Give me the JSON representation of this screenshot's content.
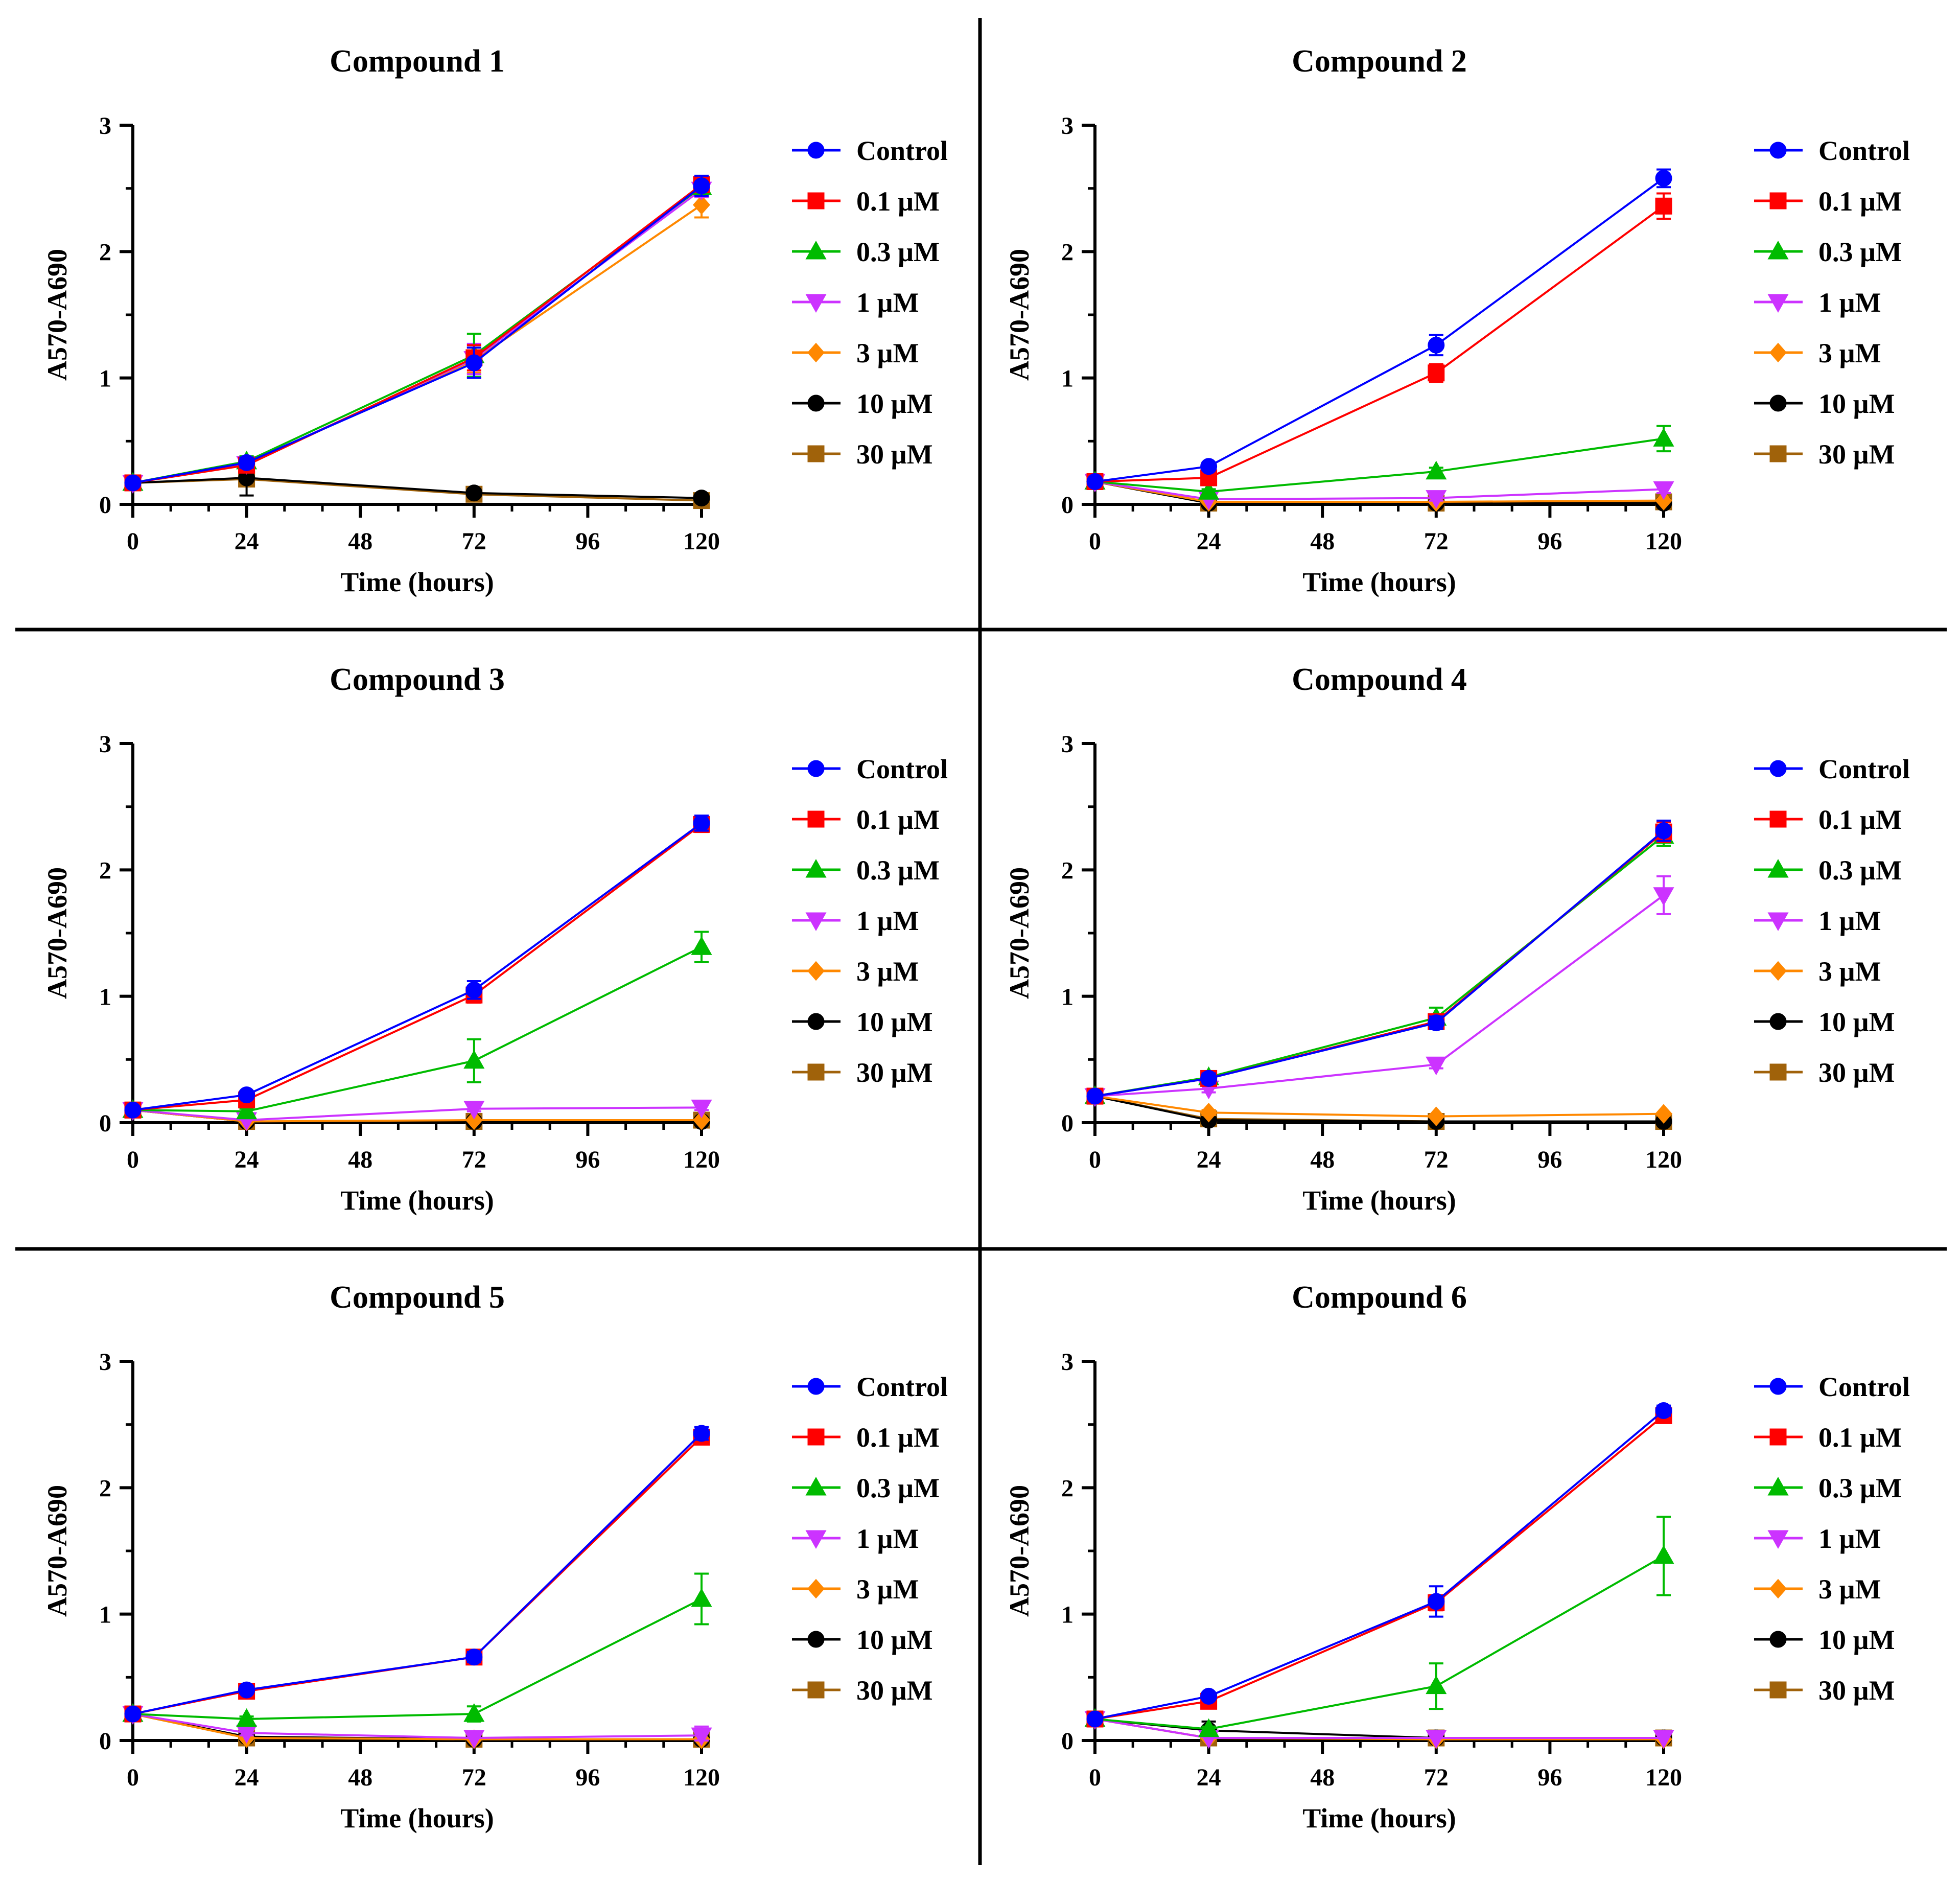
{
  "chart_data": [
    {
      "type": "line",
      "title": "Compound 1",
      "xlabel": "Time (hours)",
      "ylabel": "A570-A690",
      "x": [
        0,
        24,
        72,
        120
      ],
      "xticks": [
        0,
        24,
        48,
        72,
        96,
        120
      ],
      "yticks": [
        0,
        1,
        2,
        3
      ],
      "xlim": [
        0,
        120
      ],
      "ylim": [
        0,
        3
      ],
      "legend_position": "right",
      "series": [
        {
          "name": "Control",
          "color": "#0000ff",
          "marker": "circle",
          "values": [
            0.17,
            0.33,
            1.12,
            2.52
          ],
          "errors": [
            0.02,
            0.04,
            0.12,
            0.08
          ]
        },
        {
          "name": "0.1 µM",
          "color": "#ff0000",
          "marker": "square",
          "values": [
            0.17,
            0.31,
            1.16,
            2.53
          ],
          "errors": [
            0.02,
            0.04,
            0.1,
            0.06
          ]
        },
        {
          "name": "0.3 µM",
          "color": "#00bb00",
          "marker": "triangle-up",
          "values": [
            0.17,
            0.34,
            1.18,
            2.51
          ],
          "errors": [
            0.02,
            0.04,
            0.17,
            0.06
          ]
        },
        {
          "name": "1 µM",
          "color": "#cc33ff",
          "marker": "triangle-down",
          "values": [
            0.17,
            0.32,
            1.15,
            2.49
          ],
          "errors": [
            0.02,
            0.04,
            0.12,
            0.06
          ]
        },
        {
          "name": "3 µM",
          "color": "#ff8800",
          "marker": "diamond",
          "values": [
            0.17,
            0.32,
            1.14,
            2.37
          ],
          "errors": [
            0.02,
            0.04,
            0.1,
            0.1
          ]
        },
        {
          "name": "10 µM",
          "color": "#000000",
          "marker": "circle",
          "values": [
            0.17,
            0.21,
            0.09,
            0.05
          ],
          "errors": [
            0.02,
            0.14,
            0.03,
            0.01
          ]
        },
        {
          "name": "30 µM",
          "color": "#a0620a",
          "marker": "square",
          "values": [
            0.17,
            0.2,
            0.08,
            0.03
          ],
          "errors": [
            0.02,
            0.04,
            0.03,
            0.01
          ]
        }
      ]
    },
    {
      "type": "line",
      "title": "Compound 2",
      "xlabel": "Time (hours)",
      "ylabel": "A570-A690",
      "x": [
        0,
        24,
        72,
        120
      ],
      "xticks": [
        0,
        24,
        48,
        72,
        96,
        120
      ],
      "yticks": [
        0,
        1,
        2,
        3
      ],
      "xlim": [
        0,
        120
      ],
      "ylim": [
        0,
        3
      ],
      "legend_position": "right",
      "series": [
        {
          "name": "Control",
          "color": "#0000ff",
          "marker": "circle",
          "values": [
            0.18,
            0.3,
            1.26,
            2.58
          ],
          "errors": [
            0.02,
            0.03,
            0.08,
            0.07
          ]
        },
        {
          "name": "0.1 µM",
          "color": "#ff0000",
          "marker": "square",
          "values": [
            0.18,
            0.21,
            1.04,
            2.36
          ],
          "errors": [
            0.02,
            0.03,
            0.07,
            0.1
          ]
        },
        {
          "name": "0.3 µM",
          "color": "#00bb00",
          "marker": "triangle-up",
          "values": [
            0.18,
            0.1,
            0.26,
            0.52
          ],
          "errors": [
            0.02,
            0.02,
            0.03,
            0.1
          ]
        },
        {
          "name": "1 µM",
          "color": "#cc33ff",
          "marker": "triangle-down",
          "values": [
            0.18,
            0.04,
            0.05,
            0.12
          ],
          "errors": [
            0.02,
            0.01,
            0.02,
            0.03
          ]
        },
        {
          "name": "3 µM",
          "color": "#ff8800",
          "marker": "diamond",
          "values": [
            0.18,
            0.02,
            0.02,
            0.03
          ],
          "errors": [
            0.02,
            0.01,
            0.01,
            0.01
          ]
        },
        {
          "name": "10 µM",
          "color": "#000000",
          "marker": "circle",
          "values": [
            0.18,
            0.01,
            0.01,
            0.01
          ],
          "errors": [
            0.02,
            0.01,
            0.01,
            0.01
          ]
        },
        {
          "name": "30 µM",
          "color": "#a0620a",
          "marker": "square",
          "values": [
            0.18,
            0.01,
            0.01,
            0.02
          ],
          "errors": [
            0.02,
            0.01,
            0.01,
            0.01
          ]
        }
      ]
    },
    {
      "type": "line",
      "title": "Compound 3",
      "xlabel": "Time (hours)",
      "ylabel": "A570-A690",
      "x": [
        0,
        24,
        72,
        120
      ],
      "xticks": [
        0,
        24,
        48,
        72,
        96,
        120
      ],
      "yticks": [
        0,
        1,
        2,
        3
      ],
      "xlim": [
        0,
        120
      ],
      "ylim": [
        0,
        3
      ],
      "legend_position": "right",
      "series": [
        {
          "name": "Control",
          "color": "#0000ff",
          "marker": "circle",
          "values": [
            0.1,
            0.22,
            1.05,
            2.37
          ],
          "errors": [
            0.02,
            0.03,
            0.07,
            0.06
          ]
        },
        {
          "name": "0.1 µM",
          "color": "#ff0000",
          "marker": "square",
          "values": [
            0.1,
            0.18,
            1.01,
            2.36
          ],
          "errors": [
            0.02,
            0.03,
            0.06,
            0.06
          ]
        },
        {
          "name": "0.3 µM",
          "color": "#00bb00",
          "marker": "triangle-up",
          "values": [
            0.1,
            0.09,
            0.49,
            1.39
          ],
          "errors": [
            0.02,
            0.02,
            0.17,
            0.12
          ]
        },
        {
          "name": "1 µM",
          "color": "#cc33ff",
          "marker": "triangle-down",
          "values": [
            0.1,
            0.02,
            0.11,
            0.12
          ],
          "errors": [
            0.02,
            0.01,
            0.02,
            0.02
          ]
        },
        {
          "name": "3 µM",
          "color": "#ff8800",
          "marker": "diamond",
          "values": [
            0.1,
            0.01,
            0.02,
            0.02
          ],
          "errors": [
            0.02,
            0.01,
            0.01,
            0.01
          ]
        },
        {
          "name": "10 µM",
          "color": "#000000",
          "marker": "circle",
          "values": [
            0.1,
            0.01,
            0.01,
            0.01
          ],
          "errors": [
            0.02,
            0.01,
            0.01,
            0.01
          ]
        },
        {
          "name": "30 µM",
          "color": "#a0620a",
          "marker": "square",
          "values": [
            0.1,
            0.01,
            0.01,
            0.02
          ],
          "errors": [
            0.02,
            0.01,
            0.01,
            0.01
          ]
        }
      ]
    },
    {
      "type": "line",
      "title": "Compound 4",
      "xlabel": "Time (hours)",
      "ylabel": "A570-A690",
      "x": [
        0,
        24,
        72,
        120
      ],
      "xticks": [
        0,
        24,
        48,
        72,
        96,
        120
      ],
      "yticks": [
        0,
        1,
        2,
        3
      ],
      "xlim": [
        0,
        120
      ],
      "ylim": [
        0,
        3
      ],
      "legend_position": "right",
      "series": [
        {
          "name": "Control",
          "color": "#0000ff",
          "marker": "circle",
          "values": [
            0.21,
            0.35,
            0.79,
            2.31
          ],
          "errors": [
            0.02,
            0.04,
            0.05,
            0.08
          ]
        },
        {
          "name": "0.1 µM",
          "color": "#ff0000",
          "marker": "square",
          "values": [
            0.21,
            0.35,
            0.8,
            2.3
          ],
          "errors": [
            0.02,
            0.04,
            0.05,
            0.08
          ]
        },
        {
          "name": "0.3 µM",
          "color": "#00bb00",
          "marker": "triangle-up",
          "values": [
            0.21,
            0.36,
            0.83,
            2.27
          ],
          "errors": [
            0.02,
            0.04,
            0.08,
            0.08
          ]
        },
        {
          "name": "1 µM",
          "color": "#cc33ff",
          "marker": "triangle-down",
          "values": [
            0.21,
            0.27,
            0.46,
            1.8
          ],
          "errors": [
            0.02,
            0.03,
            0.03,
            0.15
          ]
        },
        {
          "name": "3 µM",
          "color": "#ff8800",
          "marker": "diamond",
          "values": [
            0.21,
            0.08,
            0.05,
            0.07
          ],
          "errors": [
            0.02,
            0.02,
            0.01,
            0.01
          ]
        },
        {
          "name": "10 µM",
          "color": "#000000",
          "marker": "circle",
          "values": [
            0.21,
            0.02,
            0.01,
            0.01
          ],
          "errors": [
            0.02,
            0.01,
            0.01,
            0.01
          ]
        },
        {
          "name": "30 µM",
          "color": "#a0620a",
          "marker": "square",
          "values": [
            0.21,
            0.03,
            0.01,
            0.01
          ],
          "errors": [
            0.02,
            0.01,
            0.01,
            0.01
          ]
        }
      ]
    },
    {
      "type": "line",
      "title": "Compound 5",
      "xlabel": "Time (hours)",
      "ylabel": "A570-A690",
      "x": [
        0,
        24,
        72,
        120
      ],
      "xticks": [
        0,
        24,
        48,
        72,
        96,
        120
      ],
      "yticks": [
        0,
        1,
        2,
        3
      ],
      "xlim": [
        0,
        120
      ],
      "ylim": [
        0,
        3
      ],
      "legend_position": "right",
      "series": [
        {
          "name": "Control",
          "color": "#0000ff",
          "marker": "circle",
          "values": [
            0.21,
            0.4,
            0.66,
            2.43
          ],
          "errors": [
            0.02,
            0.03,
            0.04,
            0.05
          ]
        },
        {
          "name": "0.1 µM",
          "color": "#ff0000",
          "marker": "square",
          "values": [
            0.21,
            0.39,
            0.66,
            2.4
          ],
          "errors": [
            0.02,
            0.03,
            0.04,
            0.05
          ]
        },
        {
          "name": "0.3 µM",
          "color": "#00bb00",
          "marker": "triangle-up",
          "values": [
            0.21,
            0.17,
            0.21,
            1.12
          ],
          "errors": [
            0.02,
            0.02,
            0.06,
            0.2
          ]
        },
        {
          "name": "1 µM",
          "color": "#cc33ff",
          "marker": "triangle-down",
          "values": [
            0.21,
            0.06,
            0.02,
            0.04
          ],
          "errors": [
            0.02,
            0.02,
            0.01,
            0.07
          ]
        },
        {
          "name": "3 µM",
          "color": "#ff8800",
          "marker": "diamond",
          "values": [
            0.21,
            0.02,
            0.01,
            0.01
          ],
          "errors": [
            0.02,
            0.01,
            0.01,
            0.01
          ]
        },
        {
          "name": "10 µM",
          "color": "#000000",
          "marker": "circle",
          "values": [
            0.21,
            0.03,
            0.01,
            0.01
          ],
          "errors": [
            0.02,
            0.01,
            0.01,
            0.01
          ]
        },
        {
          "name": "30 µM",
          "color": "#a0620a",
          "marker": "square",
          "values": [
            0.21,
            0.02,
            0.01,
            0.01
          ],
          "errors": [
            0.02,
            0.01,
            0.01,
            0.01
          ]
        }
      ]
    },
    {
      "type": "line",
      "title": "Compound 6",
      "xlabel": "Time (hours)",
      "ylabel": "A570-A690",
      "x": [
        0,
        24,
        72,
        120
      ],
      "xticks": [
        0,
        24,
        48,
        72,
        96,
        120
      ],
      "yticks": [
        0,
        1,
        2,
        3
      ],
      "xlim": [
        0,
        120
      ],
      "ylim": [
        0,
        3
      ],
      "legend_position": "right",
      "series": [
        {
          "name": "Control",
          "color": "#0000ff",
          "marker": "circle",
          "values": [
            0.17,
            0.35,
            1.1,
            2.61
          ],
          "errors": [
            0.02,
            0.03,
            0.12,
            0.04
          ]
        },
        {
          "name": "0.1 µM",
          "color": "#ff0000",
          "marker": "square",
          "values": [
            0.17,
            0.31,
            1.09,
            2.57
          ],
          "errors": [
            0.02,
            0.03,
            0.06,
            0.04
          ]
        },
        {
          "name": "0.3 µM",
          "color": "#00bb00",
          "marker": "triangle-up",
          "values": [
            0.17,
            0.09,
            0.43,
            1.46
          ],
          "errors": [
            0.02,
            0.02,
            0.18,
            0.31
          ]
        },
        {
          "name": "1 µM",
          "color": "#cc33ff",
          "marker": "triangle-down",
          "values": [
            0.17,
            0.02,
            0.02,
            0.02
          ],
          "errors": [
            0.02,
            0.01,
            0.01,
            0.01
          ]
        },
        {
          "name": "3 µM",
          "color": "#ff8800",
          "marker": "diamond",
          "values": [
            0.17,
            0.02,
            0.01,
            0.01
          ],
          "errors": [
            0.02,
            0.01,
            0.01,
            0.01
          ]
        },
        {
          "name": "10 µM",
          "color": "#000000",
          "marker": "circle",
          "values": [
            0.17,
            0.08,
            0.02,
            0.02
          ],
          "errors": [
            0.02,
            0.07,
            0.01,
            0.01
          ]
        },
        {
          "name": "30 µM",
          "color": "#a0620a",
          "marker": "square",
          "values": [
            0.17,
            0.02,
            0.02,
            0.02
          ],
          "errors": [
            0.02,
            0.01,
            0.01,
            0.01
          ]
        }
      ]
    }
  ]
}
